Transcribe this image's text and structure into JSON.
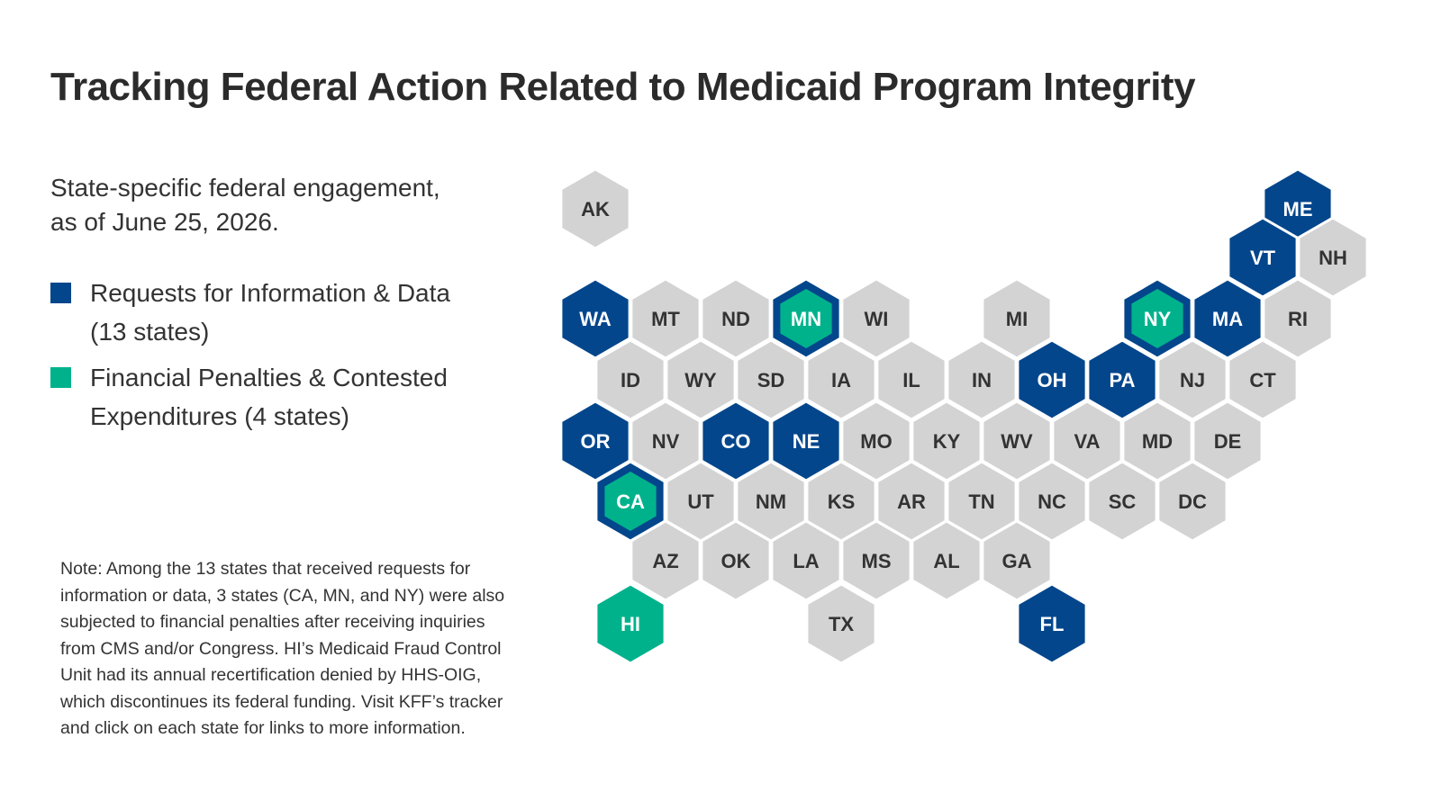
{
  "title": "Tracking Federal Action Related to Medicaid Program Integrity",
  "subtitle": {
    "line1": "State-specific federal engagement,",
    "line2": "as of June 25, 2026."
  },
  "legend": [
    {
      "lines": [
        "Requests for Information & Data",
        "(13 states)"
      ],
      "color": "#03468c"
    },
    {
      "lines": [
        "Financial Penalties & Contested",
        "Expenditures (4 states)"
      ],
      "color": "#00b28c"
    }
  ],
  "note": {
    "lines": [
      "Note: Among the 13 states that received requests for",
      "information or data, 3 states (CA, MN, and NY) were also",
      "subjected to financial penalties after receiving inquiries",
      "from CMS and/or Congress. HI’s Medicaid Fraud Control",
      "Unit had its annual recertification denied by HHS-OIG,",
      "which discontinues its federal funding. Visit KFF’s tracker",
      "and click on each state for links to more information."
    ]
  },
  "colors": {
    "none": "#d3d3d3",
    "requests": "#03468c",
    "penalties": "#00b28c",
    "label_on_gray": "#333333",
    "label_on_color": "#ffffff"
  },
  "states": [
    {
      "abbr": "AK",
      "row": 0,
      "col": 0,
      "status": "none"
    },
    {
      "abbr": "ME",
      "row": 0,
      "col": 10,
      "status": "requests"
    },
    {
      "abbr": "VT",
      "row": 1,
      "col": 9,
      "status": "requests"
    },
    {
      "abbr": "NH",
      "row": 1,
      "col": 10,
      "status": "none"
    },
    {
      "abbr": "WA",
      "row": 2,
      "col": 0,
      "status": "requests"
    },
    {
      "abbr": "MT",
      "row": 2,
      "col": 1,
      "status": "none"
    },
    {
      "abbr": "ND",
      "row": 2,
      "col": 2,
      "status": "none"
    },
    {
      "abbr": "MN",
      "row": 2,
      "col": 3,
      "status": "both"
    },
    {
      "abbr": "WI",
      "row": 2,
      "col": 4,
      "status": "none"
    },
    {
      "abbr": "MI",
      "row": 2,
      "col": 6,
      "status": "none"
    },
    {
      "abbr": "NY",
      "row": 2,
      "col": 8,
      "status": "both"
    },
    {
      "abbr": "MA",
      "row": 2,
      "col": 9,
      "status": "requests"
    },
    {
      "abbr": "RI",
      "row": 2,
      "col": 10,
      "status": "none"
    },
    {
      "abbr": "ID",
      "row": 3,
      "col": 0,
      "status": "none"
    },
    {
      "abbr": "WY",
      "row": 3,
      "col": 1,
      "status": "none"
    },
    {
      "abbr": "SD",
      "row": 3,
      "col": 2,
      "status": "none"
    },
    {
      "abbr": "IA",
      "row": 3,
      "col": 3,
      "status": "none"
    },
    {
      "abbr": "IL",
      "row": 3,
      "col": 4,
      "status": "none"
    },
    {
      "abbr": "IN",
      "row": 3,
      "col": 5,
      "status": "none"
    },
    {
      "abbr": "OH",
      "row": 3,
      "col": 6,
      "status": "requests"
    },
    {
      "abbr": "PA",
      "row": 3,
      "col": 7,
      "status": "requests"
    },
    {
      "abbr": "NJ",
      "row": 3,
      "col": 8,
      "status": "none"
    },
    {
      "abbr": "CT",
      "row": 3,
      "col": 9,
      "status": "none"
    },
    {
      "abbr": "OR",
      "row": 4,
      "col": 0,
      "status": "requests"
    },
    {
      "abbr": "NV",
      "row": 4,
      "col": 1,
      "status": "none"
    },
    {
      "abbr": "CO",
      "row": 4,
      "col": 2,
      "status": "requests"
    },
    {
      "abbr": "NE",
      "row": 4,
      "col": 3,
      "status": "requests"
    },
    {
      "abbr": "MO",
      "row": 4,
      "col": 4,
      "status": "none"
    },
    {
      "abbr": "KY",
      "row": 4,
      "col": 5,
      "status": "none"
    },
    {
      "abbr": "WV",
      "row": 4,
      "col": 6,
      "status": "none"
    },
    {
      "abbr": "VA",
      "row": 4,
      "col": 7,
      "status": "none"
    },
    {
      "abbr": "MD",
      "row": 4,
      "col": 8,
      "status": "none"
    },
    {
      "abbr": "DE",
      "row": 4,
      "col": 9,
      "status": "none"
    },
    {
      "abbr": "CA",
      "row": 5,
      "col": 0,
      "status": "both"
    },
    {
      "abbr": "UT",
      "row": 5,
      "col": 1,
      "status": "none"
    },
    {
      "abbr": "NM",
      "row": 5,
      "col": 2,
      "status": "none"
    },
    {
      "abbr": "KS",
      "row": 5,
      "col": 3,
      "status": "none"
    },
    {
      "abbr": "AR",
      "row": 5,
      "col": 4,
      "status": "none"
    },
    {
      "abbr": "TN",
      "row": 5,
      "col": 5,
      "status": "none"
    },
    {
      "abbr": "NC",
      "row": 5,
      "col": 6,
      "status": "none"
    },
    {
      "abbr": "SC",
      "row": 5,
      "col": 7,
      "status": "none"
    },
    {
      "abbr": "DC",
      "row": 5,
      "col": 8,
      "status": "none"
    },
    {
      "abbr": "AZ",
      "row": 6,
      "col": 1,
      "status": "none"
    },
    {
      "abbr": "OK",
      "row": 6,
      "col": 2,
      "status": "none"
    },
    {
      "abbr": "LA",
      "row": 6,
      "col": 3,
      "status": "none"
    },
    {
      "abbr": "MS",
      "row": 6,
      "col": 4,
      "status": "none"
    },
    {
      "abbr": "AL",
      "row": 6,
      "col": 5,
      "status": "none"
    },
    {
      "abbr": "GA",
      "row": 6,
      "col": 6,
      "status": "none"
    },
    {
      "abbr": "HI",
      "row": 7,
      "col": 0,
      "status": "penalties"
    },
    {
      "abbr": "TX",
      "row": 7,
      "col": 3,
      "status": "none"
    },
    {
      "abbr": "FL",
      "row": 7,
      "col": 6,
      "status": "requests"
    }
  ]
}
